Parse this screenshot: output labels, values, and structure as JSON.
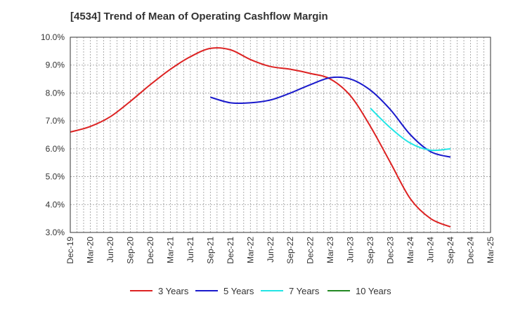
{
  "chart_data": {
    "type": "line",
    "title": "[4534]  Trend of Mean of Operating Cashflow Margin",
    "xlabel": "",
    "ylabel": "",
    "ylim": [
      3.0,
      10.0
    ],
    "y_ticks": [
      "3.0%",
      "4.0%",
      "5.0%",
      "6.0%",
      "7.0%",
      "8.0%",
      "9.0%",
      "10.0%"
    ],
    "y_tick_values": [
      3,
      4,
      5,
      6,
      7,
      8,
      9,
      10
    ],
    "x_ticks": [
      "Dec-19",
      "Mar-20",
      "Jun-20",
      "Sep-20",
      "Dec-20",
      "Mar-21",
      "Jun-21",
      "Sep-21",
      "Dec-21",
      "Mar-22",
      "Jun-22",
      "Sep-22",
      "Dec-22",
      "Mar-23",
      "Jun-23",
      "Sep-23",
      "Dec-23",
      "Mar-24",
      "Jun-24",
      "Sep-24",
      "Dec-24",
      "Mar-25"
    ],
    "series": [
      {
        "name": "3 Years",
        "color": "#dd2222",
        "values": [
          6.6,
          6.8,
          7.15,
          7.7,
          8.3,
          8.85,
          9.3,
          9.6,
          9.55,
          9.2,
          8.95,
          8.85,
          8.7,
          8.5,
          7.9,
          6.8,
          5.5,
          4.2,
          3.5,
          3.2
        ]
      },
      {
        "name": "5 Years",
        "color": "#1a1acc",
        "values": [
          null,
          null,
          null,
          null,
          null,
          null,
          null,
          7.85,
          7.65,
          7.65,
          7.75,
          8.0,
          8.3,
          8.55,
          8.5,
          8.1,
          7.4,
          6.5,
          5.9,
          5.7
        ]
      },
      {
        "name": "7 Years",
        "color": "#22e5e5",
        "values": [
          null,
          null,
          null,
          null,
          null,
          null,
          null,
          null,
          null,
          null,
          null,
          null,
          null,
          null,
          null,
          7.45,
          6.75,
          6.2,
          5.95,
          6.0
        ]
      },
      {
        "name": "10 Years",
        "color": "#228822",
        "values": [
          null,
          null,
          null,
          null,
          null,
          null,
          null,
          null,
          null,
          null,
          null,
          null,
          null,
          null,
          null,
          null,
          null,
          null,
          null,
          null
        ]
      }
    ],
    "grid": true,
    "legend_position": "bottom"
  }
}
